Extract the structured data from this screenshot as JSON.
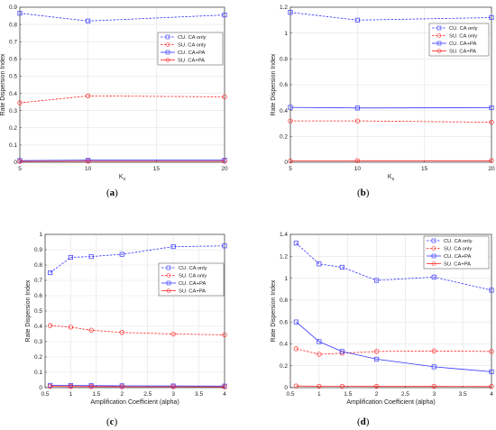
{
  "chart_data": [
    {
      "type": "line",
      "panel_label": "a",
      "xlabel": "K",
      "xlabel_sub": "s",
      "ylabel": "Rate Dispersion Index",
      "xlim": [
        5,
        20
      ],
      "ylim": [
        0,
        0.9
      ],
      "xticks": [
        5,
        10,
        15,
        20
      ],
      "yticks": [
        0,
        0.1,
        0.2,
        0.3,
        0.4,
        0.5,
        0.6,
        0.7,
        0.8,
        0.9
      ],
      "grid": true,
      "legend_position": "center-right",
      "x": [
        5,
        10,
        20
      ],
      "series": [
        {
          "name": "CU. CA only",
          "color": "#3333ff",
          "style": "dashed",
          "marker": "square",
          "values": [
            0.865,
            0.82,
            0.855
          ]
        },
        {
          "name": "SU. CA only",
          "color": "#ff2222",
          "style": "dashed",
          "marker": "circle",
          "values": [
            0.345,
            0.385,
            0.38
          ]
        },
        {
          "name": "CU. CA+PA",
          "color": "#3333ff",
          "style": "solid",
          "marker": "square",
          "values": [
            0.01,
            0.012,
            0.012
          ]
        },
        {
          "name": "SU. CA+PA",
          "color": "#ff2222",
          "style": "solid",
          "marker": "circle",
          "values": [
            0.005,
            0.006,
            0.006
          ]
        }
      ]
    },
    {
      "type": "line",
      "panel_label": "b",
      "xlabel": "K",
      "xlabel_sub": "s",
      "ylabel": "Rate Dispersion Index",
      "xlim": [
        5,
        20
      ],
      "ylim": [
        0,
        1.2
      ],
      "xticks": [
        5,
        10,
        15,
        20
      ],
      "yticks": [
        0,
        0.2,
        0.4,
        0.6,
        0.8,
        1,
        1.2
      ],
      "grid": true,
      "legend_position": "right",
      "x": [
        5,
        10,
        20
      ],
      "series": [
        {
          "name": "CU. CA only",
          "color": "#3333ff",
          "style": "dashed",
          "marker": "square",
          "values": [
            1.16,
            1.1,
            1.12
          ]
        },
        {
          "name": "SU. CA only",
          "color": "#ff2222",
          "style": "dashed",
          "marker": "circle",
          "values": [
            0.32,
            0.32,
            0.31
          ]
        },
        {
          "name": "CU. CA+PA",
          "color": "#3333ff",
          "style": "solid",
          "marker": "square",
          "values": [
            0.425,
            0.42,
            0.422
          ]
        },
        {
          "name": "SU. CA+PA",
          "color": "#ff2222",
          "style": "solid",
          "marker": "circle",
          "values": [
            0.01,
            0.012,
            0.012
          ]
        }
      ]
    },
    {
      "type": "line",
      "panel_label": "c",
      "xlabel": "Amplification Coefficient (alpha)",
      "ylabel": "Rate Dispersion Index",
      "xlim": [
        0.5,
        4
      ],
      "ylim": [
        0,
        1
      ],
      "xticks": [
        0.5,
        1,
        1.5,
        2,
        2.5,
        3,
        3.5,
        4
      ],
      "yticks": [
        0,
        0.1,
        0.2,
        0.3,
        0.4,
        0.5,
        0.6,
        0.7,
        0.8,
        0.9,
        1
      ],
      "grid": true,
      "legend_position": "center-right",
      "x": [
        0.6,
        1,
        1.4,
        2,
        3,
        4
      ],
      "series": [
        {
          "name": "CU. CA only",
          "color": "#3333ff",
          "style": "dashed",
          "marker": "square",
          "values": [
            0.75,
            0.85,
            0.855,
            0.87,
            0.92,
            0.925
          ]
        },
        {
          "name": "SU. CA only",
          "color": "#ff2222",
          "style": "dashed",
          "marker": "circle",
          "values": [
            0.405,
            0.395,
            0.375,
            0.36,
            0.35,
            0.345
          ]
        },
        {
          "name": "CU. CA+PA",
          "color": "#3333ff",
          "style": "solid",
          "marker": "square",
          "values": [
            0.015,
            0.014,
            0.013,
            0.012,
            0.011,
            0.01
          ]
        },
        {
          "name": "SU. CA+PA",
          "color": "#ff2222",
          "style": "solid",
          "marker": "circle",
          "values": [
            0.008,
            0.007,
            0.007,
            0.006,
            0.006,
            0.005
          ]
        }
      ]
    },
    {
      "type": "line",
      "panel_label": "d",
      "xlabel": "Amplification Coefficient (alpha)",
      "ylabel": "Rate Dispersion Index",
      "xlim": [
        0.5,
        4
      ],
      "ylim": [
        0,
        1.4
      ],
      "xticks": [
        0.5,
        1,
        1.5,
        2,
        2.5,
        3,
        3.5,
        4
      ],
      "yticks": [
        0,
        0.2,
        0.4,
        0.6,
        0.8,
        1,
        1.2,
        1.4
      ],
      "grid": true,
      "legend_position": "top-right",
      "x": [
        0.6,
        1,
        1.4,
        2,
        3,
        4
      ],
      "series": [
        {
          "name": "CU. CA only",
          "color": "#3333ff",
          "style": "dashed",
          "marker": "square",
          "values": [
            1.32,
            1.13,
            1.1,
            0.98,
            1.01,
            0.89
          ]
        },
        {
          "name": "SU. CA only",
          "color": "#ff2222",
          "style": "dashed",
          "marker": "circle",
          "values": [
            0.355,
            0.305,
            0.315,
            0.33,
            0.335,
            0.33
          ]
        },
        {
          "name": "CU. CA+PA",
          "color": "#3333ff",
          "style": "solid",
          "marker": "square",
          "values": [
            0.6,
            0.42,
            0.33,
            0.26,
            0.19,
            0.145
          ]
        },
        {
          "name": "SU. CA+PA",
          "color": "#ff2222",
          "style": "solid",
          "marker": "circle",
          "values": [
            0.015,
            0.012,
            0.012,
            0.011,
            0.011,
            0.01
          ]
        }
      ]
    }
  ]
}
